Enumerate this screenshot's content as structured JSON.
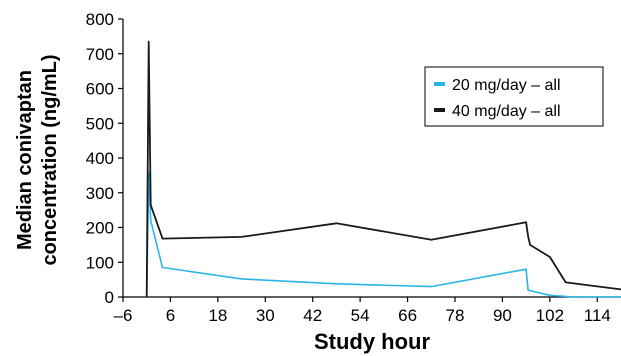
{
  "chart_data": {
    "type": "line",
    "xlabel": "Study hour",
    "ylabel_line1": "Median conivaptan",
    "ylabel_line2": "concentration (ng/mL)",
    "xlim": [
      -6,
      120
    ],
    "ylim": [
      0,
      800
    ],
    "x_ticks": [
      -6,
      6,
      18,
      30,
      42,
      54,
      66,
      78,
      90,
      102,
      114
    ],
    "x_tick_labels": [
      "–6",
      "6",
      "18",
      "30",
      "42",
      "54",
      "66",
      "78",
      "90",
      "102",
      "114"
    ],
    "y_ticks": [
      0,
      100,
      200,
      300,
      400,
      500,
      600,
      700,
      800
    ],
    "y_tick_labels": [
      "0",
      "100",
      "200",
      "300",
      "400",
      "500",
      "600",
      "700",
      "800"
    ],
    "grid": false,
    "legend_position": "top-right",
    "series": [
      {
        "name": "20 mg/day – all",
        "color": "#29b6e6",
        "x": [
          0,
          0.5,
          1,
          4,
          24,
          48,
          72,
          96,
          96.5,
          102,
          108,
          120
        ],
        "y": [
          0,
          360,
          220,
          85,
          52,
          38,
          30,
          80,
          20,
          5,
          0,
          0
        ]
      },
      {
        "name": "40 mg/day – all",
        "color": "#1a1a1a",
        "x": [
          0,
          0.5,
          1,
          4,
          24,
          48,
          72,
          96,
          96.5,
          97,
          102,
          106,
          120
        ],
        "y": [
          0,
          735,
          265,
          168,
          173,
          212,
          165,
          215,
          175,
          150,
          115,
          42,
          22
        ]
      }
    ]
  }
}
